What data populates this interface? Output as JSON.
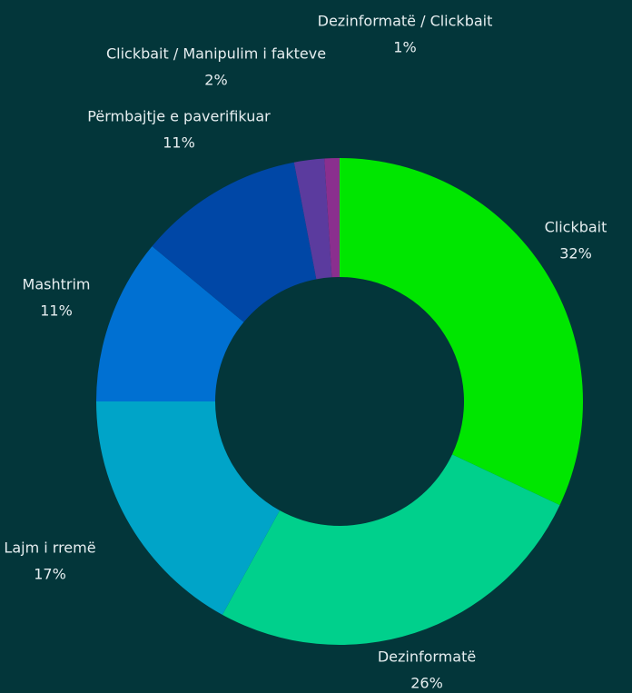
{
  "chart_data": {
    "type": "donut",
    "categories": [
      "Clickbait",
      "Dezinformatë",
      "Lajm i rremë",
      "Mashtrim",
      "Përmbajtje e paverifikuar",
      "Clickbait / Manipulim i fakteve",
      "Dezinformatë / Clickbait"
    ],
    "values": [
      32,
      26,
      17,
      11,
      11,
      2,
      1
    ],
    "value_labels": [
      "32%",
      "26%",
      "17%",
      "11%",
      "11%",
      "2%",
      "1%"
    ],
    "colors": [
      "#00e600",
      "#00d08c",
      "#00a4c8",
      "#0070d2",
      "#0047a6",
      "#5b3b9e",
      "#8a2f8e"
    ]
  }
}
